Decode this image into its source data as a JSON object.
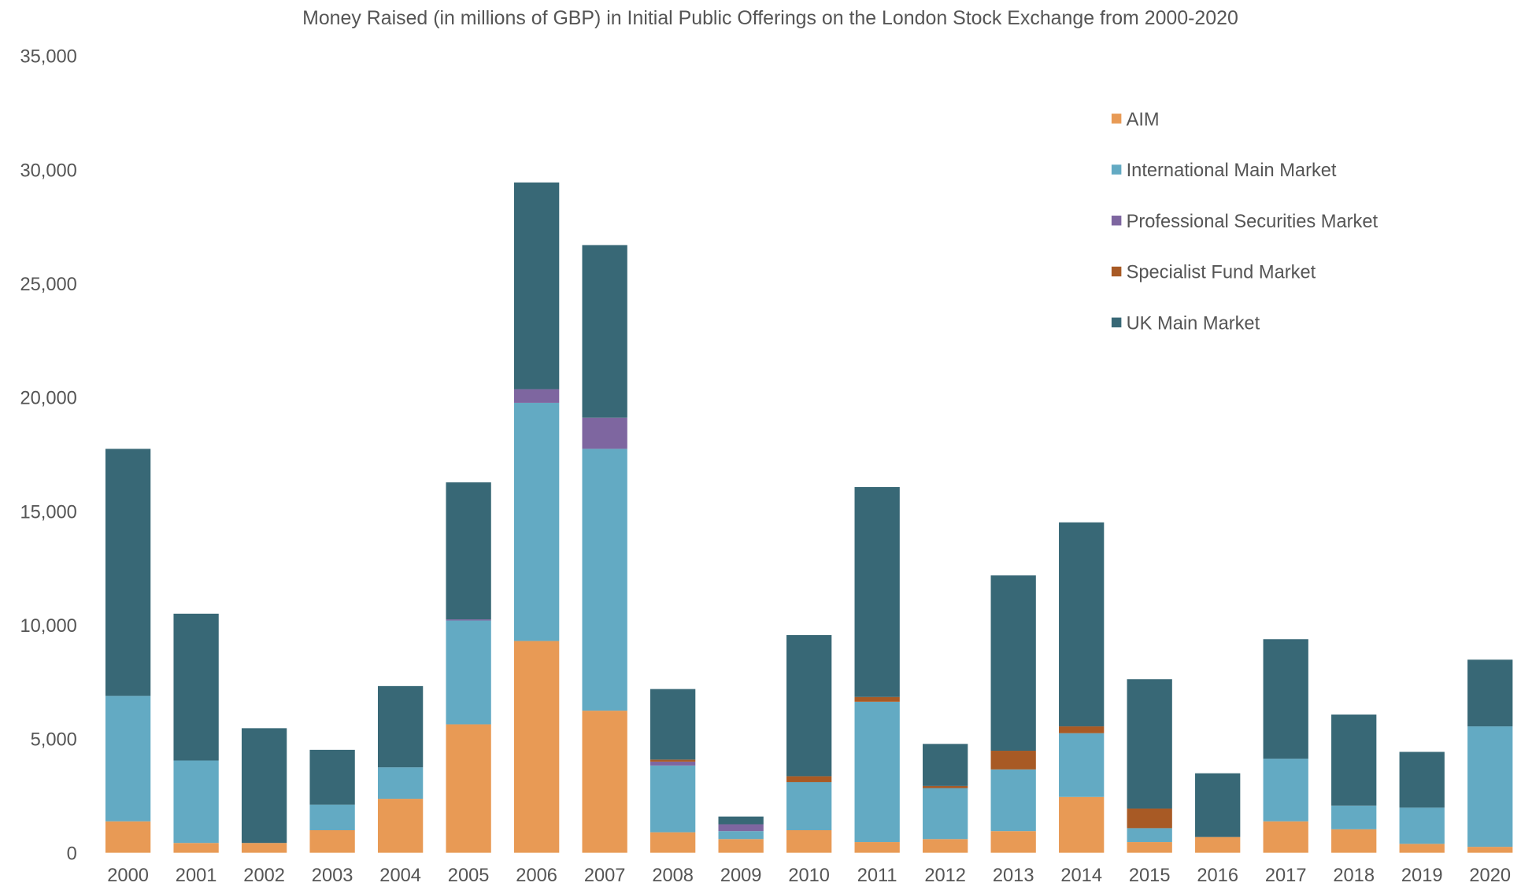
{
  "chart_data": {
    "type": "bar",
    "stacked": true,
    "title": "Money Raised (in millions of GBP)  in Initial Public Offerings on the London Stock Exchange from 2000-2020",
    "xlabel": "",
    "ylabel": "",
    "ylim": [
      0,
      35000
    ],
    "yticks": [
      "0",
      "5,000",
      "10,000",
      "15,000",
      "20,000",
      "25,000",
      "30,000",
      "35,000"
    ],
    "grid": false,
    "legend_position": "top-right",
    "categories": [
      "2000",
      "2001",
      "2002",
      "2003",
      "2004",
      "2005",
      "2006",
      "2007",
      "2008",
      "2009",
      "2010",
      "2011",
      "2012",
      "2013",
      "2014",
      "2015",
      "2016",
      "2017",
      "2018",
      "2019",
      "2020"
    ],
    "series": [
      {
        "name": "AIM",
        "color": "#E89A55",
        "values": [
          1380,
          430,
          430,
          990,
          2370,
          5640,
          9300,
          6240,
          900,
          600,
          990,
          470,
          600,
          950,
          2450,
          470,
          690,
          1380,
          1030,
          390,
          260
        ]
      },
      {
        "name": "International Main Market",
        "color": "#63AAC3",
        "values": [
          5510,
          3620,
          0,
          1120,
          1380,
          4560,
          10460,
          11500,
          2930,
          350,
          2110,
          6160,
          2240,
          2710,
          2800,
          610,
          0,
          2750,
          1040,
          1590,
          5290
        ]
      },
      {
        "name": "Professional Securities Market",
        "color": "#7E66A0",
        "values": [
          0,
          0,
          0,
          0,
          0,
          50,
          600,
          1370,
          170,
          300,
          0,
          0,
          0,
          0,
          0,
          0,
          0,
          0,
          0,
          0,
          0
        ]
      },
      {
        "name": "Specialist Fund Market",
        "color": "#A85A25",
        "values": [
          0,
          0,
          0,
          0,
          0,
          0,
          0,
          0,
          90,
          0,
          260,
          210,
          90,
          820,
          300,
          860,
          0,
          0,
          0,
          0,
          0
        ]
      },
      {
        "name": "UK Main Market",
        "color": "#386876",
        "values": [
          10850,
          6450,
          5040,
          2410,
          3570,
          6020,
          9080,
          7580,
          3100,
          340,
          6200,
          9220,
          1850,
          7700,
          8960,
          5680,
          2800,
          5250,
          4000,
          2450,
          2930
        ]
      }
    ]
  }
}
